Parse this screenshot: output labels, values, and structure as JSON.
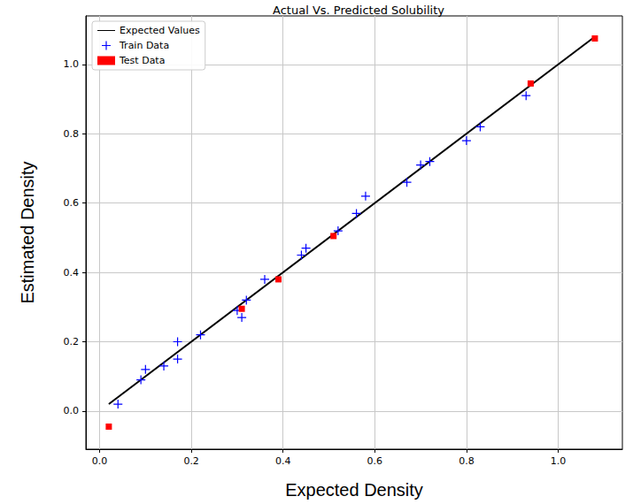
{
  "chart_data": {
    "type": "scatter",
    "title": "Actual Vs. Predicted Solubility",
    "x_label": "Expected Density",
    "y_label": "Estimated Density",
    "xlim": [
      -0.03,
      1.14
    ],
    "ylim": [
      -0.11,
      1.14
    ],
    "xticks": [
      {
        "value": 0,
        "label": "0.0"
      },
      0.2,
      0.4,
      0.6,
      0.8,
      {
        "value": 1,
        "label": "1.0"
      }
    ],
    "yticks": [
      {
        "value": 0,
        "label": "0.0"
      },
      0.2,
      0.4,
      0.6,
      0.8,
      {
        "value": 1,
        "label": "1.0"
      }
    ],
    "grid": true,
    "legend": "upper left",
    "series": [
      {
        "name": "Expected Values",
        "type": "line",
        "color": "#000000",
        "line_style": "solid",
        "x": [
          0.02,
          1.08
        ],
        "values": [
          0.02,
          1.08
        ]
      },
      {
        "name": "Train Data",
        "type": "scatter",
        "color": "#0000ff",
        "marker": "plus",
        "x": [
          0.04,
          0.09,
          0.1,
          0.14,
          0.17,
          0.17,
          0.22,
          0.3,
          0.31,
          0.32,
          0.36,
          0.44,
          0.45,
          0.52,
          0.56,
          0.58,
          0.67,
          0.7,
          0.72,
          0.8,
          0.83,
          0.93
        ],
        "values": [
          0.02,
          0.09,
          0.12,
          0.13,
          0.2,
          0.15,
          0.22,
          0.29,
          0.27,
          0.32,
          0.38,
          0.45,
          0.47,
          0.52,
          0.57,
          0.62,
          0.66,
          0.71,
          0.72,
          0.78,
          0.82,
          0.91
        ]
      },
      {
        "name": "Test Data",
        "type": "scatter",
        "color": "#ff0000",
        "marker": "square",
        "x": [
          0.02,
          0.31,
          0.39,
          0.51,
          0.94,
          1.08
        ],
        "values": [
          -0.045,
          0.295,
          0.38,
          0.505,
          0.945,
          1.075
        ]
      }
    ]
  }
}
